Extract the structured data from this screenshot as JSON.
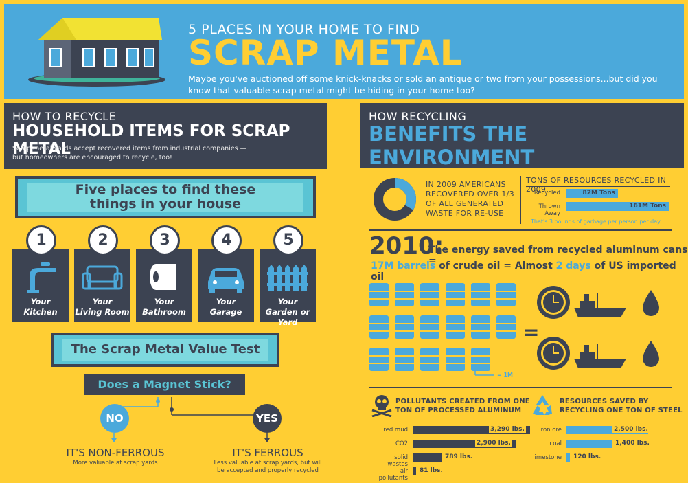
{
  "header": {
    "subtitle": "5 PLACES IN YOUR HOME TO FIND",
    "title": "SCRAP METAL",
    "description": "Maybe you've auctioned off some knick-knacks or sold an antique or two from your possessions...but did you know that valuable scrap metal might be hiding in your home too?"
  },
  "left_section": {
    "small_title": "HOW TO RECYCLE",
    "big_title": "HOUSEHOLD ITEMS FOR SCRAP METAL",
    "description": "Scrap metal yards accept recovered items from industrial companies —\nbut homeowners are encouraged to recycle, too!"
  },
  "five_places": {
    "line1": "Five places to find these",
    "line2": "things in your house",
    "places": [
      {
        "num": "1",
        "l1": "Your",
        "l2": "Kitchen",
        "icon": "faucet-icon"
      },
      {
        "num": "2",
        "l1": "Your",
        "l2": "Living Room",
        "icon": "sofa-icon"
      },
      {
        "num": "3",
        "l1": "Your",
        "l2": "Bathroom",
        "icon": "toilet-paper-icon"
      },
      {
        "num": "4",
        "l1": "Your",
        "l2": "Garage",
        "icon": "car-icon"
      },
      {
        "num": "5",
        "l1": "Your",
        "l2": "Garden or Yard",
        "icon": "fence-icon"
      }
    ]
  },
  "value_test": {
    "title": "The Scrap Metal Value Test",
    "question": "Does a Magnet Stick?",
    "no": "NO",
    "yes": "YES",
    "no_result": "IT'S NON-FERROUS",
    "no_desc": "More valuable at scrap yards",
    "yes_result": "IT'S FERROUS",
    "yes_desc": "Less valuable at scrap yards, but will be accepted and properly recycled"
  },
  "right_section": {
    "small_title": "HOW RECYCLING",
    "big_title": "BENEFITS THE ENVIRONMENT"
  },
  "recovery": {
    "text": "IN 2009 AMERICANS RECOVERED OVER 1/3 OF ALL GENERATED WASTE FOR RE-USE",
    "fraction": 0.3333
  },
  "tons": {
    "title": "TONS OF RESOURCES RECYCLED IN 2009",
    "rows": [
      {
        "label": "Recycled",
        "value": "82M Tons",
        "amount": 82
      },
      {
        "label": "Thrown Away",
        "value": "161M Tons",
        "amount": 161
      }
    ],
    "note": "That's 3 pounds of garbage per person per day"
  },
  "energy": {
    "year": "2010:",
    "line1": "The energy saved from recycled aluminum cans =",
    "barrels": "17M barrels",
    "mid": " of crude oil = Almost ",
    "days": "2 days",
    "tail": " of US imported oil",
    "legend": "= 1M",
    "barrel_count": 17
  },
  "pollutants": {
    "title_l1": "POLLUTANTS CREATED FROM ONE",
    "title_l2": "TON OF PROCESSED ALUMINUM",
    "rows": [
      {
        "label": "red mud",
        "value": "3,290 lbs.",
        "amount": 3290
      },
      {
        "label": "CO2",
        "value": "2,900 lbs.",
        "amount": 2900
      },
      {
        "label": "solid wastes",
        "value": "789 lbs.",
        "amount": 789
      },
      {
        "label": "air pollutants",
        "value": "81 lbs.",
        "amount": 81
      }
    ]
  },
  "resources_saved": {
    "title_l1": "RESOURCES SAVED BY",
    "title_l2": "RECYCLING ONE TON OF STEEL",
    "rows": [
      {
        "label": "iron ore",
        "value": "2,500 lbs.",
        "amount": 2500
      },
      {
        "label": "coal",
        "value": "1,400 lbs.",
        "amount": 1400
      },
      {
        "label": "limestone",
        "value": "120 lbs.",
        "amount": 120
      }
    ]
  },
  "colors": {
    "background": "#FFCE33",
    "blue": "#4BA9DB",
    "dark": "#3C4352",
    "teal": "#5AC4D4"
  }
}
